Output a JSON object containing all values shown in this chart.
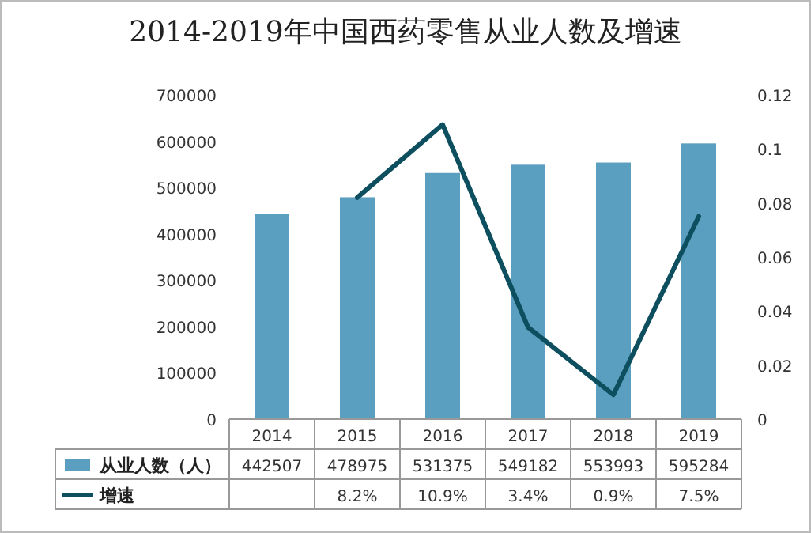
{
  "chart_data": {
    "type": "bar",
    "title": "2014-2019年中国西药零售从业人数及增速",
    "categories": [
      "2014",
      "2015",
      "2016",
      "2017",
      "2018",
      "2019"
    ],
    "series": [
      {
        "name": "从业人数（人）",
        "color": "#5b9fc0",
        "values": [
          442507,
          478975,
          531375,
          549182,
          553993,
          595284
        ],
        "value_labels": [
          "442507",
          "478975",
          "531375",
          "549182",
          "553993",
          "595284"
        ]
      },
      {
        "name": "增速",
        "type": "line",
        "axis": "y2",
        "color": "#0e4f5f",
        "values": [
          null,
          0.082,
          0.109,
          0.034,
          0.009,
          0.075
        ],
        "value_labels": [
          null,
          "8.2%",
          "10.9%",
          "3.4%",
          "0.9%",
          "7.5%"
        ]
      }
    ],
    "ylim": [
      0,
      700000
    ],
    "yticks": [
      0,
      100000,
      200000,
      300000,
      400000,
      500000,
      600000,
      700000
    ],
    "y2lim": [
      0,
      0.12
    ],
    "y2ticks": [
      0,
      0.02,
      0.04,
      0.06,
      0.08,
      0.1,
      0.12
    ],
    "legend": "bottom",
    "grid": false,
    "line_style": "solid",
    "marker": "none"
  }
}
